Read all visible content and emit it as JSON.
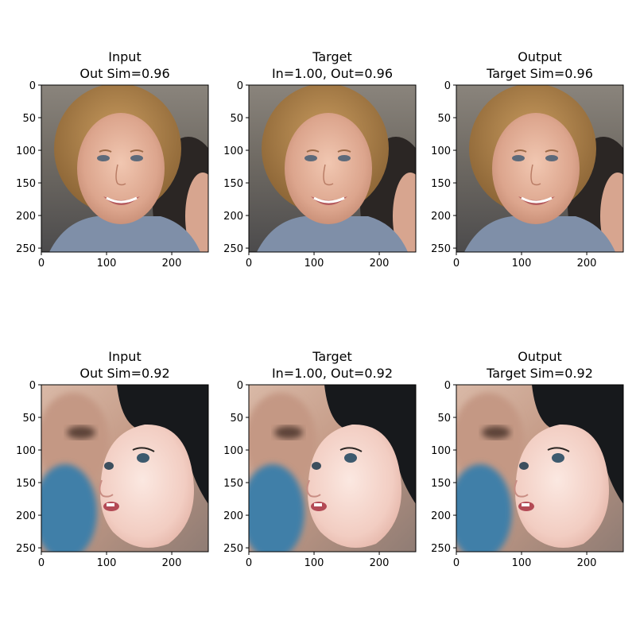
{
  "chart_data": [
    {
      "type": "image",
      "title": [
        "Input",
        "Out Sim=0.96"
      ],
      "subject": "face-woman",
      "xticks": [
        0,
        100,
        200
      ],
      "yticks": [
        0,
        50,
        100,
        150,
        200,
        250
      ],
      "xlim": [
        0,
        256
      ],
      "ylim": [
        256,
        0
      ],
      "grid": false
    },
    {
      "type": "image",
      "title": [
        "Target",
        "In=1.00, Out=0.96"
      ],
      "subject": "face-woman",
      "xticks": [
        0,
        100,
        200
      ],
      "yticks": [
        0,
        50,
        100,
        150,
        200,
        250
      ],
      "xlim": [
        0,
        256
      ],
      "ylim": [
        256,
        0
      ],
      "grid": false
    },
    {
      "type": "image",
      "title": [
        "Output",
        "Target Sim=0.96"
      ],
      "subject": "face-woman",
      "xticks": [
        0,
        100,
        200
      ],
      "yticks": [
        0,
        50,
        100,
        150,
        200,
        250
      ],
      "xlim": [
        0,
        256
      ],
      "ylim": [
        256,
        0
      ],
      "grid": false
    },
    {
      "type": "image",
      "title": [
        "Input",
        "Out Sim=0.92"
      ],
      "subject": "face-child",
      "xticks": [
        0,
        100,
        200
      ],
      "yticks": [
        0,
        50,
        100,
        150,
        200,
        250
      ],
      "xlim": [
        0,
        256
      ],
      "ylim": [
        256,
        0
      ],
      "grid": false
    },
    {
      "type": "image",
      "title": [
        "Target",
        "In=1.00, Out=0.92"
      ],
      "subject": "face-child",
      "xticks": [
        0,
        100,
        200
      ],
      "yticks": [
        0,
        50,
        100,
        150,
        200,
        250
      ],
      "xlim": [
        0,
        256
      ],
      "ylim": [
        256,
        0
      ],
      "grid": false
    },
    {
      "type": "image",
      "title": [
        "Output",
        "Target Sim=0.92"
      ],
      "subject": "face-child",
      "xticks": [
        0,
        100,
        200
      ],
      "yticks": [
        0,
        50,
        100,
        150,
        200,
        250
      ],
      "xlim": [
        0,
        256
      ],
      "ylim": [
        256,
        0
      ],
      "grid": false
    }
  ]
}
